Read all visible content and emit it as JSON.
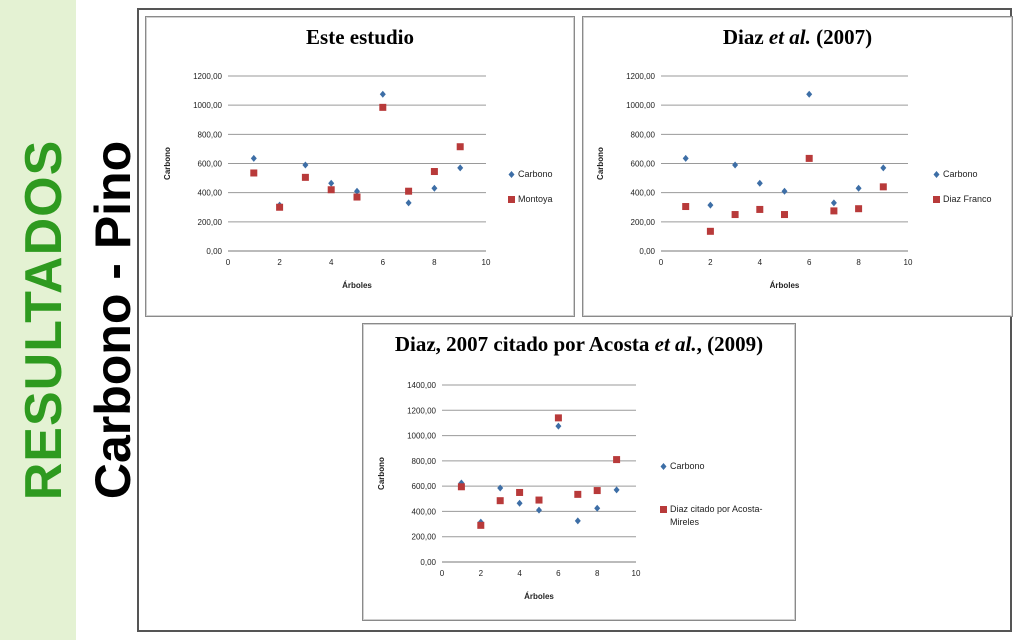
{
  "slide": {
    "section_title": "RESULTADOS",
    "subtitle": "Carbono - Pino"
  },
  "colors": {
    "section_title": "#2e9a1f",
    "side_band": "#e4f2d3",
    "series_blue": "#3d6ea6",
    "series_red": "#b83a3a",
    "grid": "#9a9a9a"
  },
  "chart_data": [
    {
      "type": "scatter",
      "title": "Este estudio",
      "title_parts": [
        {
          "text": "Este estudio",
          "italic": false
        }
      ],
      "xlabel": "Árboles",
      "ylabel": "Carbono",
      "xlim": [
        0,
        10
      ],
      "ylim": [
        0,
        1200
      ],
      "x_ticks": [
        "0",
        "2",
        "4",
        "6",
        "8",
        "10"
      ],
      "y_ticks": [
        "0,00",
        "200,00",
        "400,00",
        "600,00",
        "800,00",
        "1000,00",
        "1200,00"
      ],
      "x_tick_values": [
        0,
        2,
        4,
        6,
        8,
        10
      ],
      "y_tick_values": [
        0,
        200,
        400,
        600,
        800,
        1000,
        1200
      ],
      "grid": "horizontal",
      "legend_position": "right",
      "series": [
        {
          "name": "Carbono",
          "marker": "diamond",
          "color": "#3d6ea6",
          "x": [
            1,
            2,
            3,
            4,
            5,
            6,
            7,
            8,
            9
          ],
          "y": [
            635,
            315,
            590,
            465,
            410,
            1075,
            330,
            430,
            570
          ]
        },
        {
          "name": "Montoya",
          "marker": "square",
          "color": "#b83a3a",
          "x": [
            1,
            2,
            3,
            4,
            5,
            6,
            7,
            8,
            9
          ],
          "y": [
            535,
            300,
            505,
            420,
            370,
            985,
            410,
            545,
            715
          ]
        }
      ]
    },
    {
      "type": "scatter",
      "title": "Diaz et al. (2007)",
      "title_parts": [
        {
          "text": "Diaz ",
          "italic": false
        },
        {
          "text": "et al.",
          "italic": true
        },
        {
          "text": " (2007)",
          "italic": false
        }
      ],
      "xlabel": "Árboles",
      "ylabel": "Carbono",
      "xlim": [
        0,
        10
      ],
      "ylim": [
        0,
        1200
      ],
      "x_ticks": [
        "0",
        "2",
        "4",
        "6",
        "8",
        "10"
      ],
      "y_ticks": [
        "0,00",
        "200,00",
        "400,00",
        "600,00",
        "800,00",
        "1000,00",
        "1200,00"
      ],
      "x_tick_values": [
        0,
        2,
        4,
        6,
        8,
        10
      ],
      "y_tick_values": [
        0,
        200,
        400,
        600,
        800,
        1000,
        1200
      ],
      "grid": "horizontal",
      "legend_position": "right",
      "series": [
        {
          "name": "Carbono",
          "marker": "diamond",
          "color": "#3d6ea6",
          "x": [
            1,
            2,
            3,
            4,
            5,
            6,
            7,
            8,
            9
          ],
          "y": [
            635,
            315,
            590,
            465,
            410,
            1075,
            330,
            430,
            570
          ]
        },
        {
          "name": "Diaz Franco",
          "marker": "square",
          "color": "#b83a3a",
          "x": [
            1,
            2,
            3,
            4,
            5,
            6,
            7,
            8,
            9
          ],
          "y": [
            305,
            135,
            250,
            285,
            250,
            635,
            275,
            290,
            440
          ]
        }
      ]
    },
    {
      "type": "scatter",
      "title": "Diaz, 2007 citado por Acosta et al., (2009)",
      "title_parts": [
        {
          "text": "Diaz, 2007 citado por Acosta ",
          "italic": false
        },
        {
          "text": "et al.",
          "italic": true
        },
        {
          "text": ", (2009)",
          "italic": false
        }
      ],
      "xlabel": "Árboles",
      "ylabel": "Carbono",
      "xlim": [
        0,
        10
      ],
      "ylim": [
        0,
        1400
      ],
      "x_ticks": [
        "0",
        "2",
        "4",
        "6",
        "8",
        "10"
      ],
      "y_ticks": [
        "0,00",
        "200,00",
        "400,00",
        "600,00",
        "800,00",
        "1000,00",
        "1200,00",
        "1400,00"
      ],
      "x_tick_values": [
        0,
        2,
        4,
        6,
        8,
        10
      ],
      "y_tick_values": [
        0,
        200,
        400,
        600,
        800,
        1000,
        1200,
        1400
      ],
      "grid": "horizontal",
      "legend_position": "right",
      "series": [
        {
          "name": "Carbono",
          "marker": "diamond",
          "color": "#3d6ea6",
          "x": [
            1,
            2,
            3,
            4,
            5,
            6,
            7,
            8,
            9
          ],
          "y": [
            625,
            315,
            585,
            465,
            410,
            1075,
            325,
            425,
            570
          ]
        },
        {
          "name": "Diaz citado por Acosta-Mireles",
          "marker": "square",
          "color": "#b83a3a",
          "x": [
            1,
            2,
            3,
            4,
            5,
            6,
            7,
            8,
            9
          ],
          "y": [
            595,
            290,
            485,
            550,
            490,
            1140,
            535,
            565,
            810
          ]
        }
      ]
    }
  ]
}
